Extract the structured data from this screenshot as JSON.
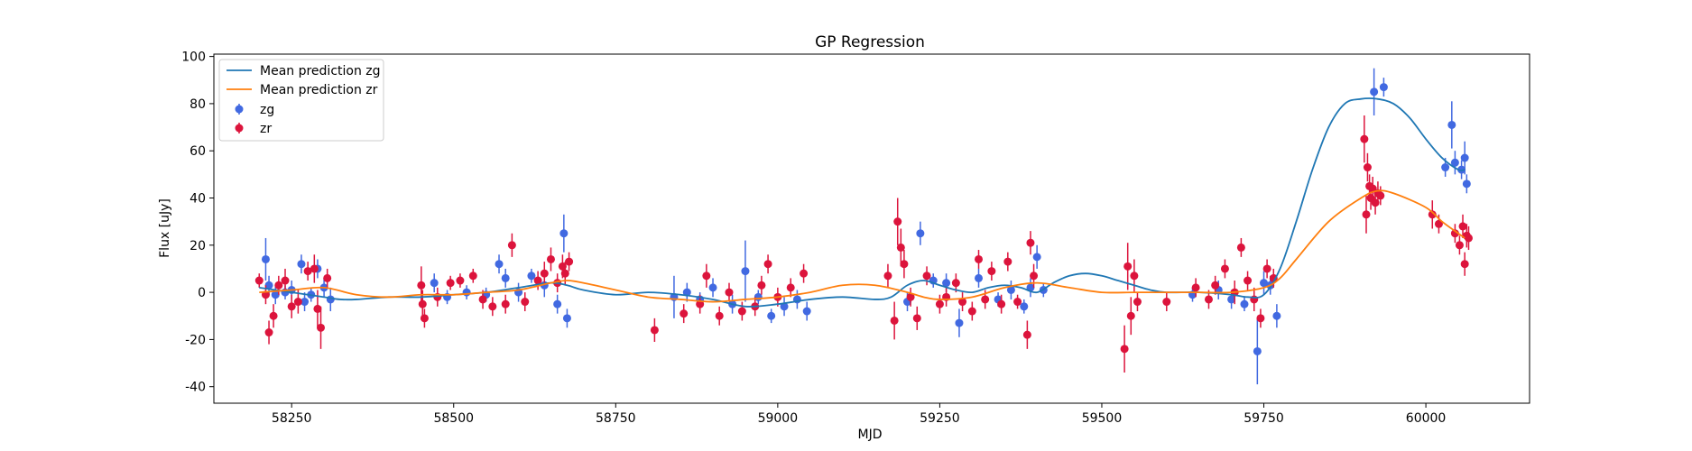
{
  "chart_data": {
    "type": "scatter",
    "title": "GP Regression",
    "xlabel": "MJD",
    "ylabel": "Flux [uJy]",
    "xlim": [
      58130,
      60160
    ],
    "ylim": [
      -47,
      101
    ],
    "xticks": [
      58250,
      58500,
      58750,
      59000,
      59250,
      59500,
      59750,
      60000
    ],
    "yticks": [
      -40,
      -20,
      0,
      20,
      40,
      60,
      80,
      100
    ],
    "grid": false,
    "legend": {
      "placement": "top-left",
      "entries": [
        "Mean prediction zg",
        "Mean prediction zr",
        "zg",
        "zr"
      ]
    },
    "colors": {
      "mean_zg": "#1f77b4",
      "mean_zr": "#ff7f0e",
      "zg": "#4169e1",
      "zr": "#dc143c"
    },
    "series": [
      {
        "name": "Mean prediction zg",
        "kind": "line",
        "x": [
          58200,
          58225,
          58250,
          58275,
          58300,
          58325,
          58350,
          58400,
          58450,
          58500,
          58550,
          58600,
          58650,
          58675,
          58700,
          58750,
          58800,
          58850,
          58900,
          58950,
          59000,
          59050,
          59100,
          59150,
          59175,
          59200,
          59225,
          59250,
          59275,
          59300,
          59325,
          59350,
          59375,
          59400,
          59425,
          59450,
          59475,
          59500,
          59525,
          59550,
          59575,
          59600,
          59650,
          59700,
          59725,
          59750,
          59775,
          59800,
          59825,
          59850,
          59875,
          59900,
          59925,
          59950,
          59975,
          60000,
          60025,
          60050,
          60060
        ],
        "y": [
          2,
          1,
          0,
          -1,
          -2,
          -3,
          -3,
          -2,
          -2,
          -1,
          0,
          2,
          4,
          3,
          1,
          -1,
          0,
          -1,
          -3,
          -6,
          -5,
          -3,
          -2,
          -3,
          -2,
          3,
          5,
          3,
          1,
          0,
          2,
          3,
          2,
          0,
          4,
          7,
          8,
          7,
          5,
          3,
          1,
          0,
          0,
          -1,
          -2,
          -1,
          10,
          30,
          52,
          70,
          80,
          82,
          82,
          80,
          74,
          65,
          57,
          52,
          52
        ]
      },
      {
        "name": "Mean prediction zr",
        "kind": "line",
        "x": [
          58200,
          58250,
          58300,
          58350,
          58400,
          58450,
          58500,
          58550,
          58600,
          58650,
          58675,
          58700,
          58750,
          58800,
          58850,
          58900,
          58950,
          59000,
          59050,
          59100,
          59150,
          59200,
          59225,
          59250,
          59300,
          59350,
          59400,
          59450,
          59500,
          59550,
          59600,
          59650,
          59700,
          59750,
          59775,
          59800,
          59850,
          59900,
          59925,
          59950,
          60000,
          60025,
          60050,
          60060
        ],
        "y": [
          0,
          1,
          2,
          -1,
          -2,
          -1,
          -1,
          0,
          1,
          4,
          5,
          4,
          1,
          -2,
          -3,
          -4,
          -3,
          -2,
          0,
          3,
          3,
          0,
          -2,
          -3,
          -2,
          2,
          4,
          2,
          0,
          0,
          0,
          0,
          0,
          2,
          6,
          14,
          30,
          40,
          43,
          42,
          36,
          30,
          25,
          23
        ]
      },
      {
        "name": "zg",
        "kind": "errorbar-scatter",
        "points": [
          [
            58210,
            14,
            9
          ],
          [
            58215,
            3,
            4
          ],
          [
            58225,
            -1,
            4
          ],
          [
            58240,
            0,
            3
          ],
          [
            58250,
            1,
            4
          ],
          [
            58265,
            12,
            4
          ],
          [
            58270,
            -4,
            4
          ],
          [
            58280,
            -1,
            3
          ],
          [
            58290,
            10,
            4
          ],
          [
            58300,
            2,
            4
          ],
          [
            58310,
            -3,
            5
          ],
          [
            58470,
            4,
            4
          ],
          [
            58490,
            -2,
            3
          ],
          [
            58520,
            0,
            3
          ],
          [
            58550,
            -1,
            3
          ],
          [
            58570,
            12,
            4
          ],
          [
            58580,
            6,
            4
          ],
          [
            58600,
            0,
            4
          ],
          [
            58620,
            7,
            3
          ],
          [
            58640,
            3,
            5
          ],
          [
            58660,
            -5,
            4
          ],
          [
            58670,
            25,
            8
          ],
          [
            58675,
            -11,
            4
          ],
          [
            58840,
            -2,
            9
          ],
          [
            58860,
            0,
            4
          ],
          [
            58880,
            -3,
            3
          ],
          [
            58900,
            2,
            4
          ],
          [
            58930,
            -5,
            4
          ],
          [
            58950,
            9,
            13
          ],
          [
            58970,
            -2,
            3
          ],
          [
            58990,
            -10,
            3
          ],
          [
            59010,
            -6,
            4
          ],
          [
            59030,
            -3,
            4
          ],
          [
            59045,
            -8,
            4
          ],
          [
            59200,
            -4,
            4
          ],
          [
            59220,
            25,
            5
          ],
          [
            59240,
            5,
            3
          ],
          [
            59260,
            4,
            4
          ],
          [
            59280,
            -13,
            6
          ],
          [
            59310,
            6,
            4
          ],
          [
            59340,
            -3,
            3
          ],
          [
            59360,
            1,
            4
          ],
          [
            59380,
            -6,
            3
          ],
          [
            59390,
            2,
            4
          ],
          [
            59400,
            15,
            5
          ],
          [
            59410,
            1,
            3
          ],
          [
            59640,
            -1,
            3
          ],
          [
            59680,
            1,
            4
          ],
          [
            59700,
            -3,
            4
          ],
          [
            59720,
            -5,
            3
          ],
          [
            59740,
            -25,
            14
          ],
          [
            59750,
            4,
            5
          ],
          [
            59760,
            3,
            4
          ],
          [
            59770,
            -10,
            5
          ],
          [
            59920,
            85,
            10
          ],
          [
            59935,
            87,
            4
          ],
          [
            60030,
            53,
            4
          ],
          [
            60040,
            71,
            10
          ],
          [
            60045,
            55,
            5
          ],
          [
            60055,
            52,
            4
          ],
          [
            60060,
            57,
            7
          ],
          [
            60063,
            46,
            4
          ]
        ]
      },
      {
        "name": "zr",
        "kind": "errorbar-scatter",
        "points": [
          [
            58200,
            5,
            3
          ],
          [
            58210,
            -1,
            4
          ],
          [
            58215,
            -17,
            5
          ],
          [
            58222,
            -10,
            5
          ],
          [
            58230,
            3,
            4
          ],
          [
            58240,
            5,
            5
          ],
          [
            58250,
            -6,
            5
          ],
          [
            58260,
            -4,
            5
          ],
          [
            58275,
            9,
            4
          ],
          [
            58285,
            10,
            6
          ],
          [
            58290,
            -7,
            8
          ],
          [
            58295,
            -15,
            9
          ],
          [
            58305,
            6,
            4
          ],
          [
            58450,
            3,
            8
          ],
          [
            58452,
            -5,
            6
          ],
          [
            58455,
            -11,
            4
          ],
          [
            58475,
            -2,
            4
          ],
          [
            58495,
            4,
            3
          ],
          [
            58510,
            5,
            3
          ],
          [
            58530,
            7,
            3
          ],
          [
            58545,
            -3,
            4
          ],
          [
            58560,
            -6,
            4
          ],
          [
            58580,
            -5,
            4
          ],
          [
            58590,
            20,
            5
          ],
          [
            58610,
            -4,
            4
          ],
          [
            58630,
            5,
            4
          ],
          [
            58640,
            8,
            5
          ],
          [
            58650,
            14,
            5
          ],
          [
            58660,
            4,
            4
          ],
          [
            58668,
            11,
            5
          ],
          [
            58672,
            8,
            5
          ],
          [
            58678,
            13,
            4
          ],
          [
            58810,
            -16,
            5
          ],
          [
            58855,
            -9,
            4
          ],
          [
            58880,
            -5,
            4
          ],
          [
            58890,
            7,
            5
          ],
          [
            58910,
            -10,
            4
          ],
          [
            58925,
            0,
            4
          ],
          [
            58945,
            -8,
            4
          ],
          [
            58965,
            -6,
            4
          ],
          [
            58975,
            3,
            4
          ],
          [
            58985,
            12,
            4
          ],
          [
            59000,
            -2,
            4
          ],
          [
            59020,
            2,
            4
          ],
          [
            59040,
            8,
            4
          ],
          [
            59170,
            7,
            5
          ],
          [
            59180,
            -12,
            8
          ],
          [
            59185,
            30,
            10
          ],
          [
            59190,
            19,
            8
          ],
          [
            59195,
            12,
            6
          ],
          [
            59205,
            -2,
            4
          ],
          [
            59215,
            -11,
            5
          ],
          [
            59230,
            7,
            4
          ],
          [
            59250,
            -5,
            4
          ],
          [
            59260,
            -2,
            4
          ],
          [
            59275,
            4,
            4
          ],
          [
            59285,
            -4,
            4
          ],
          [
            59300,
            -8,
            4
          ],
          [
            59310,
            14,
            4
          ],
          [
            59320,
            -3,
            4
          ],
          [
            59330,
            9,
            4
          ],
          [
            59345,
            -5,
            4
          ],
          [
            59355,
            13,
            4
          ],
          [
            59370,
            -4,
            3
          ],
          [
            59385,
            -18,
            6
          ],
          [
            59390,
            21,
            5
          ],
          [
            59395,
            7,
            5
          ],
          [
            59535,
            -24,
            10
          ],
          [
            59540,
            11,
            10
          ],
          [
            59545,
            -10,
            8
          ],
          [
            59550,
            7,
            7
          ],
          [
            59555,
            -4,
            4
          ],
          [
            59600,
            -4,
            4
          ],
          [
            59645,
            2,
            4
          ],
          [
            59665,
            -3,
            4
          ],
          [
            59675,
            3,
            4
          ],
          [
            59690,
            10,
            4
          ],
          [
            59705,
            0,
            5
          ],
          [
            59715,
            19,
            4
          ],
          [
            59725,
            5,
            4
          ],
          [
            59735,
            -3,
            5
          ],
          [
            59745,
            -11,
            4
          ],
          [
            59755,
            10,
            4
          ],
          [
            59765,
            6,
            4
          ],
          [
            59905,
            65,
            10
          ],
          [
            59908,
            33,
            8
          ],
          [
            59910,
            53,
            6
          ],
          [
            59913,
            45,
            5
          ],
          [
            59915,
            40,
            5
          ],
          [
            59918,
            44,
            5
          ],
          [
            59922,
            38,
            5
          ],
          [
            59926,
            42,
            5
          ],
          [
            59930,
            41,
            4
          ],
          [
            60010,
            33,
            6
          ],
          [
            60020,
            29,
            4
          ],
          [
            60045,
            25,
            4
          ],
          [
            60052,
            20,
            4
          ],
          [
            60057,
            28,
            5
          ],
          [
            60060,
            12,
            5
          ],
          [
            60063,
            24,
            5
          ],
          [
            60066,
            23,
            5
          ]
        ]
      }
    ]
  }
}
